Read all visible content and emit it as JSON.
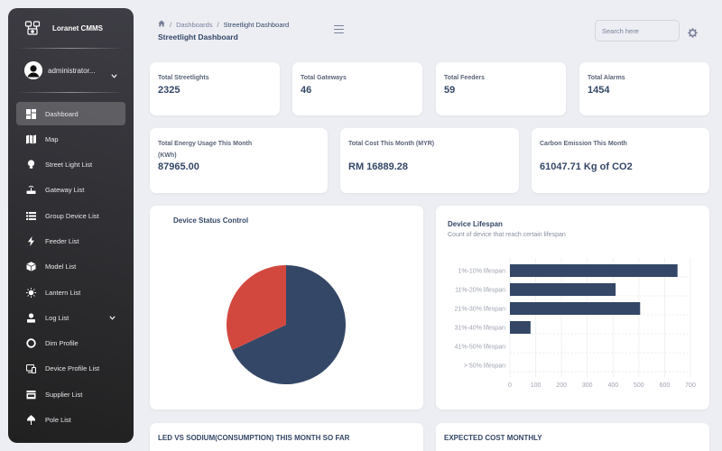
{
  "sidebar": {
    "brand": "Loranet CMMS",
    "user": "administrator...",
    "items": [
      {
        "label": "Dashboard",
        "icon": "dashboard-icon"
      },
      {
        "label": "Map",
        "icon": "map-icon"
      },
      {
        "label": "Street Light List",
        "icon": "lightbulb-icon"
      },
      {
        "label": "Gateway List",
        "icon": "router-icon"
      },
      {
        "label": "Group Device List",
        "icon": "list-icon"
      },
      {
        "label": "Feeder List",
        "icon": "bolt-icon"
      },
      {
        "label": "Model List",
        "icon": "cubes-icon"
      },
      {
        "label": "Lantern List",
        "icon": "lantern-icon"
      },
      {
        "label": "Log List",
        "icon": "log-icon"
      },
      {
        "label": "Dim Profile",
        "icon": "sun-icon"
      },
      {
        "label": "Device Profile List",
        "icon": "devices-icon"
      },
      {
        "label": "Supplier List",
        "icon": "store-icon"
      },
      {
        "label": "Pole List",
        "icon": "pole-icon"
      }
    ]
  },
  "header": {
    "breadcrumb_section": "Dashboards",
    "breadcrumb_current": "Streetlight Dashboard",
    "title": "Streetlight Dashboard",
    "search_placeholder": "Search here"
  },
  "stats": [
    {
      "label": "Total Streetlights",
      "value": "2325"
    },
    {
      "label": "Total Gateways",
      "value": "46"
    },
    {
      "label": "Total Feeders",
      "value": "59"
    },
    {
      "label": "Total Alarms",
      "value": "1454"
    }
  ],
  "metrics": [
    {
      "label": "Total Energy Usage This Month (KWh)",
      "value": "87965.00"
    },
    {
      "label": "Total Cost This Month (MYR)",
      "value": "RM 16889.28"
    },
    {
      "label": "Carbon Emission This Month",
      "value": "61047.71 Kg of CO2"
    }
  ],
  "device_status": {
    "title": "Device Status Control"
  },
  "lifespan": {
    "title": "Device Lifespan",
    "subtitle": "Count of device that reach certain lifespan"
  },
  "bottom": {
    "consumption_title": "LED VS SODIUM(CONSUMPTION) THIS MONTH SO FAR",
    "cost_title": "EXPECTED COST MONTHLY"
  },
  "colors": {
    "navy": "#344767",
    "red": "#d2483f",
    "bar": "#344767"
  },
  "chart_data": [
    {
      "type": "pie",
      "title": "Device Status Control",
      "values": [
        68,
        32
      ],
      "colors": [
        "#344767",
        "#d2483f"
      ]
    },
    {
      "type": "bar",
      "orientation": "horizontal",
      "title": "Device Lifespan",
      "subtitle": "Count of device that reach certain lifespan",
      "categories": [
        "1%-10% lifespan",
        "11%-20% lifespan",
        "21%-30% lifespan",
        "31%-40% lifespan",
        "41%-50% lifespan",
        "> 50% lifespan"
      ],
      "values": [
        650,
        410,
        505,
        80,
        0,
        0
      ],
      "xlim": [
        0,
        700
      ],
      "xticks": [
        0,
        100,
        200,
        300,
        400,
        500,
        600,
        700
      ],
      "grid": true
    }
  ]
}
